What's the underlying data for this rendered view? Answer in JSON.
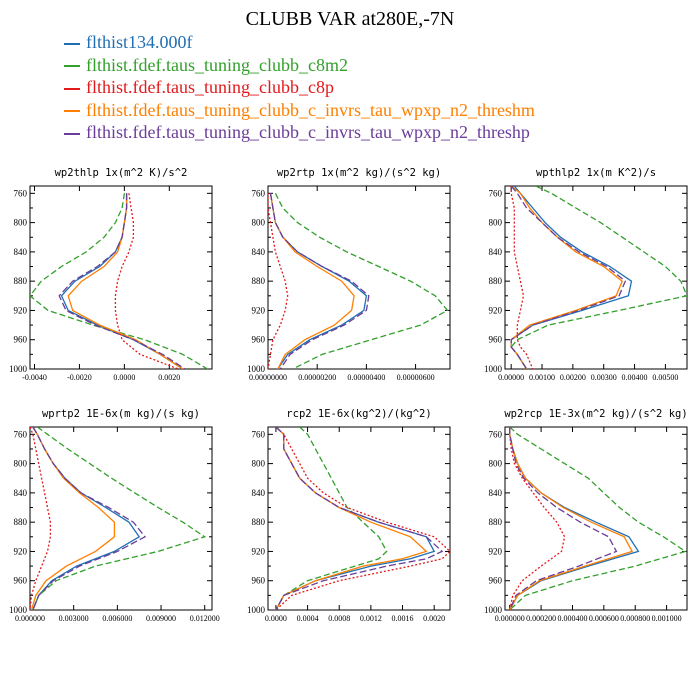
{
  "figure": {
    "title": "CLUBB VAR at280E,-7N"
  },
  "legend": [
    {
      "name": "flthist134.000f",
      "color": "#1f6fb4"
    },
    {
      "name": "flthist.fdef.taus_tuning_clubb_c8m2",
      "color": "#33a02c"
    },
    {
      "name": "flthist.fdef.taus_tuning_clubb_c8p",
      "color": "#e31a1c"
    },
    {
      "name": "flthist.fdef.taus_tuning_clubb_c_invrs_tau_wpxp_n2_threshm",
      "color": "#ff7f00"
    },
    {
      "name": "flthist.fdef.taus_tuning_clubb_c_invrs_tau_wpxp_n2_threshp",
      "color": "#6a3d9a"
    }
  ],
  "chart_data": [
    {
      "type": "line",
      "title": "wp2thlp  1x(m^2 K)/s^2",
      "y": [
        760,
        780,
        800,
        820,
        840,
        860,
        880,
        900,
        920,
        940,
        960,
        980,
        1000
      ],
      "ylim": [
        1000,
        750
      ],
      "yticks": [
        760,
        800,
        840,
        880,
        920,
        960,
        1000
      ],
      "xlim": [
        -0.0042,
        0.0039
      ],
      "xticks": [
        -0.004,
        -0.002,
        0.0,
        0.002
      ],
      "xticklabels": [
        "-0.0040",
        "-0.0020",
        "0.0000",
        "0.0020"
      ],
      "series": [
        {
          "values": [
            0.0001,
            0.0001,
            0.0,
            -0.0001,
            -0.0004,
            -0.0011,
            -0.0022,
            -0.0028,
            -0.0025,
            -0.0012,
            0.0004,
            0.0016,
            0.0026
          ]
        },
        {
          "values": [
            0.0,
            -0.0001,
            -0.0004,
            -0.0009,
            -0.0017,
            -0.0028,
            -0.0037,
            -0.0042,
            -0.0034,
            -0.0014,
            0.0009,
            0.0026,
            0.0037
          ]
        },
        {
          "values": [
            0.0002,
            0.0003,
            0.0004,
            0.0004,
            0.0002,
            -0.0001,
            -0.0003,
            -0.0004,
            -0.0004,
            -0.0003,
            -0.0001,
            0.0007,
            0.0024
          ]
        },
        {
          "values": [
            0.0001,
            0.0001,
            0.0,
            -0.0001,
            -0.0003,
            -0.0009,
            -0.0019,
            -0.0025,
            -0.0023,
            -0.0011,
            0.0005,
            0.0016,
            0.0026
          ]
        },
        {
          "values": [
            0.0001,
            0.0001,
            0.0,
            -0.0001,
            -0.0004,
            -0.0012,
            -0.0023,
            -0.0029,
            -0.0026,
            -0.0013,
            0.0004,
            0.0017,
            0.0027
          ]
        }
      ]
    },
    {
      "type": "line",
      "title": "wp2rtp  1x(m^2 kg)/(s^2 kg)",
      "y": [
        760,
        780,
        800,
        820,
        840,
        860,
        880,
        900,
        920,
        940,
        960,
        980,
        1000
      ],
      "ylim": [
        1000,
        750
      ],
      "yticks": [
        760,
        800,
        840,
        880,
        920,
        960,
        1000
      ],
      "xlim": [
        0,
        7.4e-06
      ],
      "xticks": [
        0,
        2e-06,
        4e-06,
        6e-06
      ],
      "xticklabels": [
        "0.00000000",
        "0.00000200",
        "0.00000400",
        "0.00000600"
      ],
      "series": [
        {
          "values": [
            1e-07,
            2e-07,
            3e-07,
            6e-07,
            1.2e-06,
            2.2e-06,
            3.3e-06,
            4e-06,
            3.9e-06,
            3e-06,
            1.7e-06,
            8e-07,
            4e-07
          ]
        },
        {
          "values": [
            3e-07,
            6e-07,
            1.2e-06,
            2.1e-06,
            3.2e-06,
            4.5e-06,
            5.8e-06,
            6.8e-06,
            7.3e-06,
            6.2e-06,
            4.2e-06,
            2.2e-06,
            1e-06
          ]
        },
        {
          "values": [
            0.0,
            0.0,
            1e-07,
            2e-07,
            3e-07,
            5e-07,
            7e-07,
            8e-07,
            7e-07,
            5e-07,
            2e-07,
            1e-07,
            0.0
          ]
        },
        {
          "values": [
            1e-07,
            2e-07,
            3e-07,
            6e-07,
            1.1e-06,
            2e-06,
            3e-06,
            3.5e-06,
            3.4e-06,
            2.7e-06,
            1.5e-06,
            7e-07,
            4e-07
          ]
        },
        {
          "values": [
            1e-07,
            2e-07,
            3e-07,
            6e-07,
            1.2e-06,
            2.2e-06,
            3.4e-06,
            4.1e-06,
            4e-06,
            3.1e-06,
            1.8e-06,
            9e-07,
            5e-07
          ]
        }
      ]
    },
    {
      "type": "line",
      "title": "wpthlp2  1x(m K^2)/s",
      "y": [
        750,
        760,
        780,
        800,
        820,
        840,
        860,
        880,
        900,
        920,
        940,
        960,
        970,
        980,
        1000
      ],
      "ylim": [
        1000,
        750
      ],
      "yticks": [
        760,
        800,
        840,
        880,
        920,
        960,
        1000
      ],
      "xlim": [
        -0.0002,
        0.0057
      ],
      "xticks": [
        0,
        0.001,
        0.002,
        0.003,
        0.004,
        0.005
      ],
      "xticklabels": [
        "0.00000",
        "0.00100",
        "0.00200",
        "0.00300",
        "0.00400",
        "0.00500"
      ],
      "series": [
        {
          "values": [
            0.0001,
            0.0003,
            0.0007,
            0.0011,
            0.0016,
            0.0023,
            0.0032,
            0.0039,
            0.0038,
            0.0023,
            0.0007,
            0.0,
            0.0,
            0.0002,
            0.0005
          ]
        },
        {
          "values": [
            0.0008,
            0.0013,
            0.0021,
            0.0029,
            0.0036,
            0.0043,
            0.005,
            0.0055,
            0.0057,
            0.0035,
            0.0012,
            0.0002,
            0.0,
            0.0002,
            0.0005
          ]
        },
        {
          "values": [
            0.0,
            0.0,
            0.0001,
            0.0001,
            0.0001,
            0.0001,
            0.0002,
            0.0003,
            0.0004,
            0.0003,
            0.0002,
            0.0002,
            0.0003,
            0.0005,
            0.0007
          ]
        },
        {
          "values": [
            0.0,
            0.0003,
            0.0006,
            0.001,
            0.0015,
            0.0021,
            0.003,
            0.0036,
            0.0034,
            0.0021,
            0.0006,
            0.0,
            0.0,
            0.0002,
            0.0005
          ]
        },
        {
          "values": [
            0.0,
            0.0002,
            0.0005,
            0.001,
            0.0015,
            0.0022,
            0.0031,
            0.0037,
            0.0035,
            0.0022,
            0.0007,
            0.0,
            0.0,
            0.0002,
            0.0005
          ]
        }
      ]
    },
    {
      "type": "line",
      "title": "wprtp2  1E-6x(m kg)/(s kg)",
      "y": [
        750,
        760,
        780,
        800,
        820,
        840,
        860,
        880,
        900,
        920,
        940,
        960,
        980,
        1000
      ],
      "ylim": [
        1000,
        750
      ],
      "yticks": [
        760,
        800,
        840,
        880,
        920,
        960,
        1000
      ],
      "xlim": [
        0,
        0.0125
      ],
      "xticks": [
        0,
        0.003,
        0.006,
        0.009,
        0.012
      ],
      "xticklabels": [
        "0.000000",
        "0.003000",
        "0.006000",
        "0.009000",
        "0.012000"
      ],
      "series": [
        {
          "values": [
            0.0002,
            0.0005,
            0.001,
            0.0016,
            0.0024,
            0.0035,
            0.0052,
            0.0068,
            0.0075,
            0.0058,
            0.0032,
            0.0015,
            0.0006,
            0.0002
          ]
        },
        {
          "values": [
            0.0005,
            0.0012,
            0.0026,
            0.0041,
            0.0056,
            0.0072,
            0.0088,
            0.0105,
            0.012,
            0.0088,
            0.0045,
            0.0018,
            0.0006,
            0.0002
          ]
        },
        {
          "values": [
            0.0,
            0.0002,
            0.0004,
            0.0006,
            0.0008,
            0.001,
            0.0012,
            0.0014,
            0.0014,
            0.0012,
            0.0008,
            0.0004,
            0.0001,
            0.0
          ]
        },
        {
          "values": [
            0.0002,
            0.0005,
            0.001,
            0.0016,
            0.0023,
            0.0034,
            0.0047,
            0.0058,
            0.0058,
            0.0045,
            0.0025,
            0.0011,
            0.0004,
            0.0001
          ]
        },
        {
          "values": [
            0.0002,
            0.0005,
            0.001,
            0.0016,
            0.0024,
            0.0035,
            0.0054,
            0.0071,
            0.0079,
            0.006,
            0.0034,
            0.0016,
            0.0006,
            0.0002
          ]
        }
      ]
    },
    {
      "type": "line",
      "title": "rcp2  1E-6x(kg^2)/(kg^2)",
      "y": [
        750,
        760,
        780,
        800,
        820,
        840,
        860,
        880,
        900,
        920,
        930,
        940,
        960,
        980,
        1000
      ],
      "ylim": [
        1000,
        750
      ],
      "yticks": [
        760,
        800,
        840,
        880,
        920,
        960,
        1000
      ],
      "xlim": [
        -0.0001,
        0.0022
      ],
      "xticks": [
        0,
        0.0004,
        0.0008,
        0.0012,
        0.0016,
        0.002
      ],
      "xticklabels": [
        "0.0000",
        "0.0004",
        "0.0008",
        "0.0012",
        "0.0016",
        "0.0020"
      ],
      "series": [
        {
          "values": [
            0.0,
            0.0001,
            0.0001,
            0.0002,
            0.0003,
            0.0005,
            0.0008,
            0.0013,
            0.0019,
            0.002,
            0.0017,
            0.0012,
            0.0005,
            0.0001,
            0.0
          ]
        },
        {
          "values": [
            0.0003,
            0.0004,
            0.0005,
            0.0006,
            0.0007,
            0.0008,
            0.0009,
            0.0011,
            0.0013,
            0.0014,
            0.0013,
            0.001,
            0.0004,
            0.0001,
            0.0
          ]
        },
        {
          "values": [
            0.0,
            0.0001,
            0.0002,
            0.0003,
            0.0004,
            0.0006,
            0.0009,
            0.0014,
            0.002,
            0.0022,
            0.0021,
            0.0017,
            0.0008,
            0.0002,
            0.0
          ]
        },
        {
          "values": [
            0.0,
            0.0001,
            0.0001,
            0.0002,
            0.0003,
            0.0005,
            0.0008,
            0.0012,
            0.0017,
            0.0019,
            0.0016,
            0.0011,
            0.0005,
            0.0001,
            0.0
          ]
        },
        {
          "values": [
            0.0,
            0.0001,
            0.0001,
            0.0002,
            0.0003,
            0.0005,
            0.0008,
            0.0013,
            0.0019,
            0.0021,
            0.0019,
            0.0014,
            0.0006,
            0.0001,
            0.0
          ]
        }
      ]
    },
    {
      "type": "line",
      "title": "wp2rcp  1E-3x(m^2 kg)/(s^2 kg)",
      "y": [
        750,
        760,
        780,
        800,
        820,
        840,
        860,
        880,
        900,
        920,
        940,
        960,
        980,
        1000
      ],
      "ylim": [
        1000,
        750
      ],
      "yticks": [
        760,
        800,
        840,
        880,
        920,
        960,
        1000
      ],
      "xlim": [
        -3e-05,
        0.00113
      ],
      "xticks": [
        0,
        0.0002,
        0.0004,
        0.0006,
        0.0008,
        0.001
      ],
      "xticklabels": [
        "0.000000",
        "0.000200",
        "0.000400",
        "0.000600",
        "0.000800",
        "0.001000"
      ],
      "series": [
        {
          "values": [
            0.0,
            0.0,
            2e-05,
            5e-05,
            0.0001,
            0.0002,
            0.00035,
            0.00055,
            0.00076,
            0.00082,
            0.0005,
            0.0002,
            5e-05,
            0.0
          ]
        },
        {
          "values": [
            0.0,
            5e-05,
            0.0002,
            0.00035,
            0.0005,
            0.0006,
            0.0007,
            0.00082,
            0.00098,
            0.00112,
            0.0008,
            0.0004,
            0.0001,
            0.0
          ]
        },
        {
          "values": [
            0.0,
            0.0,
            1e-05,
            3e-05,
            8e-05,
            0.00015,
            0.00022,
            0.0003,
            0.00035,
            0.00033,
            0.0002,
            8e-05,
            2e-05,
            0.0
          ]
        },
        {
          "values": [
            0.0,
            0.0,
            2e-05,
            5e-05,
            0.0001,
            0.0002,
            0.00034,
            0.00052,
            0.00073,
            0.00078,
            0.00048,
            0.00019,
            5e-05,
            0.0
          ]
        },
        {
          "values": [
            0.0,
            0.0,
            2e-05,
            4e-05,
            9e-05,
            0.00018,
            0.0003,
            0.00045,
            0.00063,
            0.00068,
            0.00044,
            0.00017,
            4e-05,
            0.0
          ]
        }
      ]
    }
  ]
}
